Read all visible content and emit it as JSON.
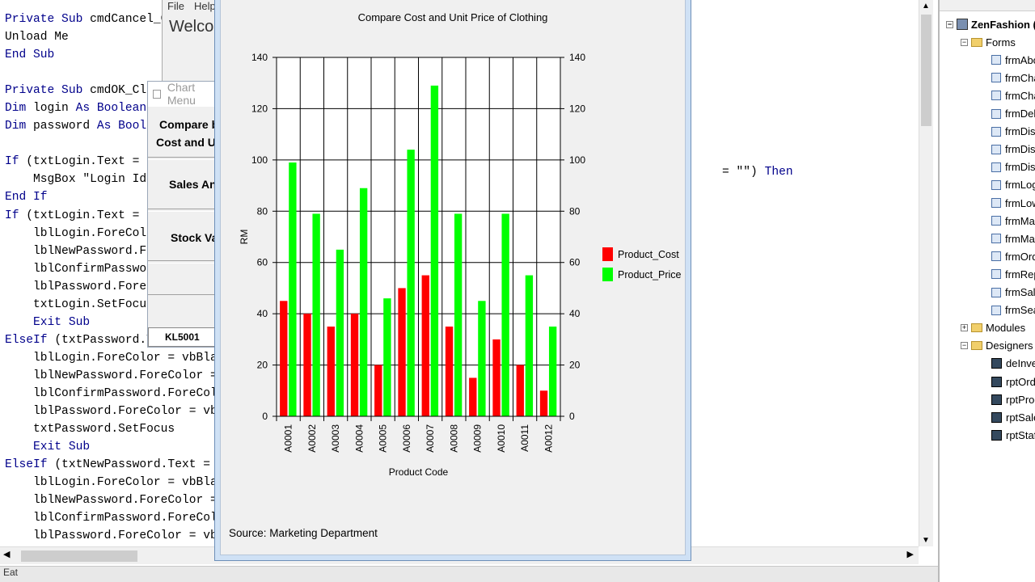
{
  "code_editor": {
    "lines": [
      [
        {
          "t": "Private Sub ",
          "k": true
        },
        {
          "t": "cmdCancel_Cl"
        }
      ],
      [
        {
          "t": "Unload Me"
        }
      ],
      [
        {
          "t": "End Sub",
          "k": true
        }
      ],
      [
        {
          "t": ""
        }
      ],
      [
        {
          "t": "Private Sub ",
          "k": true
        },
        {
          "t": "cmdOK_Cli"
        }
      ],
      [
        {
          "t": "Dim ",
          "k": true
        },
        {
          "t": "login "
        },
        {
          "t": "As Boolean",
          "k": true
        }
      ],
      [
        {
          "t": "Dim ",
          "k": true
        },
        {
          "t": "password "
        },
        {
          "t": "As Boole",
          "k": true
        }
      ],
      [
        {
          "t": ""
        }
      ],
      [
        {
          "t": "If ",
          "k": true
        },
        {
          "t": "(txtLogin.Text = \""
        }
      ],
      [
        {
          "t": "    MsgBox \"Login Id :"
        }
      ],
      [
        {
          "t": "End If",
          "k": true
        }
      ],
      [
        {
          "t": "If ",
          "k": true
        },
        {
          "t": "(txtLogin.Text = \""
        }
      ],
      [
        {
          "t": "    lblLogin.ForeColo"
        }
      ],
      [
        {
          "t": "    lblNewPassword.Fo"
        }
      ],
      [
        {
          "t": "    lblConfirmPasswor"
        }
      ],
      [
        {
          "t": "    lblPassword.ForeC"
        }
      ],
      [
        {
          "t": "    txtLogin.SetFocus"
        }
      ],
      [
        {
          "t": "    "
        },
        {
          "t": "Exit Sub",
          "k": true
        }
      ],
      [
        {
          "t": "ElseIf ",
          "k": true
        },
        {
          "t": "(txtPassword.Tex"
        }
      ],
      [
        {
          "t": "    lblLogin.ForeColor = vbBlac"
        }
      ],
      [
        {
          "t": "    lblNewPassword.ForeColor = v"
        }
      ],
      [
        {
          "t": "    lblConfirmPassword.ForeColor"
        }
      ],
      [
        {
          "t": "    lblPassword.ForeColor = vbRe"
        }
      ],
      [
        {
          "t": "    txtPassword.SetFocus"
        }
      ],
      [
        {
          "t": "    "
        },
        {
          "t": "Exit Sub",
          "k": true
        }
      ],
      [
        {
          "t": "ElseIf ",
          "k": true
        },
        {
          "t": "(txtNewPassword.Text = \""
        }
      ],
      [
        {
          "t": "    lblLogin.ForeColor = vbBlack"
        }
      ],
      [
        {
          "t": "    lblNewPassword.ForeColor = v"
        }
      ],
      [
        {
          "t": "    lblConfirmPassword.ForeColor"
        }
      ],
      [
        {
          "t": "    lblPassword.ForeColor = vbBl"
        }
      ]
    ],
    "right_fragment_text": "= \"\") ",
    "right_fragment_keyword": "Then"
  },
  "status_bar": {
    "text": "Eat"
  },
  "main_form": {
    "menu": [
      "File",
      "Help"
    ],
    "welcome": "Welcom"
  },
  "chart_menu": {
    "title": "Chart Menu",
    "buttons": [
      {
        "line1": "Compare b",
        "line2": "Cost and U"
      },
      {
        "line1": "Sales An"
      },
      {
        "line1": "Stock Va"
      }
    ],
    "textbox_value": "KL5001"
  },
  "project_explorer": {
    "project_name": "ZenFashion (",
    "forms_folder": "Forms",
    "forms": [
      "frmAbo",
      "frmCha",
      "frmCha",
      "frmDele",
      "frmDisp",
      "frmDisp",
      "frmDisp",
      "frmLogi",
      "frmLow",
      "frmMai",
      "frmMai",
      "frmOrd",
      "frmRep",
      "frmSale",
      "frmSea"
    ],
    "modules_folder": "Modules",
    "designers_folder": "Designers",
    "designers": [
      "deInve",
      "rptOrde",
      "rptProd",
      "rptSale",
      "rptStaf"
    ]
  },
  "chart_window": {
    "source_text": "Source: Marketing Department"
  },
  "chart_data": {
    "type": "bar",
    "title": "Compare Cost and Unit Price of Clothing",
    "xlabel": "Product Code",
    "ylabel": "RM",
    "categories": [
      "A0001",
      "A0002",
      "A0003",
      "A0004",
      "A0005",
      "A0006",
      "A0007",
      "A0008",
      "A0009",
      "A0010",
      "A0011",
      "A0012"
    ],
    "series": [
      {
        "name": "Product_Cost",
        "color": "#ff0000",
        "values": [
          45,
          40,
          35,
          40,
          20,
          50,
          55,
          35,
          15,
          30,
          20,
          10
        ]
      },
      {
        "name": "Product_Price",
        "color": "#00ff00",
        "values": [
          99,
          79,
          65,
          89,
          46,
          104,
          129,
          79,
          45,
          79,
          55,
          35
        ]
      }
    ],
    "ylim": [
      0,
      140
    ],
    "yticks": [
      0,
      20,
      40,
      60,
      80,
      100,
      120,
      140
    ],
    "grid": true,
    "secondary_y_axis": true,
    "legend_position": "right"
  }
}
